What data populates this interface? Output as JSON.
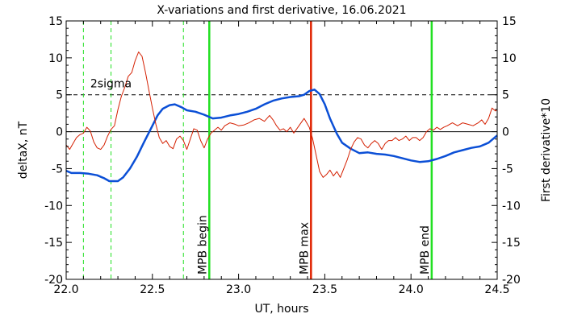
{
  "chart_data": {
    "type": "line",
    "title": "X-variations and first derivative, 16.06.2021",
    "xlabel": "UT, hours",
    "ylabel_left": "deltaX, nT",
    "ylabel_right": "First derivative*10",
    "xlim": [
      22.0,
      24.5
    ],
    "ylim": [
      -20,
      15
    ],
    "x_ticks": [
      22.0,
      22.5,
      23.0,
      23.5,
      24.0,
      24.5
    ],
    "x_tick_labels": [
      "22.0",
      "22.5",
      "23.0",
      "23.5",
      "24.0",
      "24.5"
    ],
    "y_ticks": [
      15,
      10,
      5,
      0,
      -5,
      -10,
      -15,
      -20
    ],
    "y_tick_labels": [
      "15",
      "10",
      "5",
      "0",
      "-5",
      "-10",
      "-15",
      "-20"
    ],
    "colors": {
      "deltaX": "#0b4fd6",
      "derivative": "#d41f00",
      "mpb_begin_end": "#22e022",
      "mpb_max": "#e02200",
      "axis": "#000000"
    },
    "series": [
      {
        "key": "deltaX",
        "axis": "left",
        "points": [
          [
            22.0,
            -5.3
          ],
          [
            22.03,
            -5.6
          ],
          [
            22.08,
            -5.6
          ],
          [
            22.13,
            -5.7
          ],
          [
            22.18,
            -5.9
          ],
          [
            22.22,
            -6.3
          ],
          [
            22.25,
            -6.7
          ],
          [
            22.3,
            -6.7
          ],
          [
            22.33,
            -6.2
          ],
          [
            22.37,
            -5.0
          ],
          [
            22.41,
            -3.4
          ],
          [
            22.45,
            -1.5
          ],
          [
            22.5,
            0.8
          ],
          [
            22.53,
            2.2
          ],
          [
            22.56,
            3.1
          ],
          [
            22.6,
            3.6
          ],
          [
            22.63,
            3.7
          ],
          [
            22.67,
            3.3
          ],
          [
            22.7,
            2.9
          ],
          [
            22.75,
            2.7
          ],
          [
            22.8,
            2.3
          ],
          [
            22.85,
            1.8
          ],
          [
            22.9,
            1.9
          ],
          [
            22.95,
            2.2
          ],
          [
            23.0,
            2.4
          ],
          [
            23.05,
            2.7
          ],
          [
            23.1,
            3.1
          ],
          [
            23.15,
            3.7
          ],
          [
            23.2,
            4.2
          ],
          [
            23.25,
            4.5
          ],
          [
            23.3,
            4.7
          ],
          [
            23.35,
            4.8
          ],
          [
            23.38,
            5.0
          ],
          [
            23.41,
            5.5
          ],
          [
            23.44,
            5.7
          ],
          [
            23.47,
            5.1
          ],
          [
            23.5,
            3.7
          ],
          [
            23.53,
            1.8
          ],
          [
            23.57,
            -0.3
          ],
          [
            23.6,
            -1.5
          ],
          [
            23.65,
            -2.3
          ],
          [
            23.7,
            -2.9
          ],
          [
            23.75,
            -2.8
          ],
          [
            23.8,
            -3.0
          ],
          [
            23.85,
            -3.1
          ],
          [
            23.9,
            -3.3
          ],
          [
            23.95,
            -3.6
          ],
          [
            24.0,
            -3.9
          ],
          [
            24.05,
            -4.1
          ],
          [
            24.1,
            -4.0
          ],
          [
            24.15,
            -3.7
          ],
          [
            24.2,
            -3.3
          ],
          [
            24.25,
            -2.8
          ],
          [
            24.3,
            -2.5
          ],
          [
            24.35,
            -2.2
          ],
          [
            24.4,
            -2.0
          ],
          [
            24.45,
            -1.5
          ],
          [
            24.5,
            -0.5
          ]
        ]
      },
      {
        "key": "derivative",
        "axis": "right",
        "points": [
          [
            22.0,
            -1.8
          ],
          [
            22.02,
            -2.4
          ],
          [
            22.04,
            -1.6
          ],
          [
            22.06,
            -0.8
          ],
          [
            22.08,
            -0.4
          ],
          [
            22.1,
            -0.2
          ],
          [
            22.12,
            0.6
          ],
          [
            22.14,
            0.1
          ],
          [
            22.16,
            -1.4
          ],
          [
            22.18,
            -2.2
          ],
          [
            22.2,
            -2.4
          ],
          [
            22.22,
            -1.8
          ],
          [
            22.24,
            -0.6
          ],
          [
            22.26,
            0.3
          ],
          [
            22.28,
            0.8
          ],
          [
            22.3,
            3.0
          ],
          [
            22.32,
            4.8
          ],
          [
            22.34,
            6.0
          ],
          [
            22.36,
            7.5
          ],
          [
            22.38,
            8.0
          ],
          [
            22.4,
            9.6
          ],
          [
            22.42,
            10.8
          ],
          [
            22.44,
            10.2
          ],
          [
            22.46,
            8.0
          ],
          [
            22.48,
            5.6
          ],
          [
            22.5,
            3.2
          ],
          [
            22.52,
            1.0
          ],
          [
            22.54,
            -0.8
          ],
          [
            22.56,
            -1.6
          ],
          [
            22.58,
            -1.2
          ],
          [
            22.6,
            -2.0
          ],
          [
            22.62,
            -2.3
          ],
          [
            22.64,
            -1.0
          ],
          [
            22.66,
            -0.6
          ],
          [
            22.68,
            -1.2
          ],
          [
            22.7,
            -2.4
          ],
          [
            22.72,
            -1.0
          ],
          [
            22.74,
            0.4
          ],
          [
            22.76,
            0.2
          ],
          [
            22.78,
            -1.2
          ],
          [
            22.8,
            -2.2
          ],
          [
            22.82,
            -1.0
          ],
          [
            22.84,
            -0.2
          ],
          [
            22.86,
            0.2
          ],
          [
            22.88,
            0.6
          ],
          [
            22.9,
            0.2
          ],
          [
            22.92,
            0.8
          ],
          [
            22.95,
            1.2
          ],
          [
            22.98,
            1.0
          ],
          [
            23.0,
            0.8
          ],
          [
            23.03,
            0.9
          ],
          [
            23.06,
            1.2
          ],
          [
            23.09,
            1.6
          ],
          [
            23.12,
            1.8
          ],
          [
            23.15,
            1.4
          ],
          [
            23.18,
            2.2
          ],
          [
            23.2,
            1.6
          ],
          [
            23.22,
            0.8
          ],
          [
            23.24,
            0.2
          ],
          [
            23.26,
            0.4
          ],
          [
            23.28,
            0.0
          ],
          [
            23.3,
            0.6
          ],
          [
            23.32,
            -0.2
          ],
          [
            23.35,
            0.8
          ],
          [
            23.38,
            1.8
          ],
          [
            23.41,
            0.6
          ],
          [
            23.43,
            -1.0
          ],
          [
            23.45,
            -3.2
          ],
          [
            23.47,
            -5.4
          ],
          [
            23.49,
            -6.2
          ],
          [
            23.51,
            -5.8
          ],
          [
            23.53,
            -5.2
          ],
          [
            23.55,
            -6.0
          ],
          [
            23.57,
            -5.4
          ],
          [
            23.59,
            -6.2
          ],
          [
            23.61,
            -5.0
          ],
          [
            23.63,
            -3.8
          ],
          [
            23.65,
            -2.4
          ],
          [
            23.67,
            -1.4
          ],
          [
            23.69,
            -0.8
          ],
          [
            23.71,
            -1.0
          ],
          [
            23.73,
            -1.8
          ],
          [
            23.75,
            -2.2
          ],
          [
            23.77,
            -1.6
          ],
          [
            23.79,
            -1.2
          ],
          [
            23.81,
            -1.6
          ],
          [
            23.83,
            -2.4
          ],
          [
            23.85,
            -1.6
          ],
          [
            23.87,
            -1.2
          ],
          [
            23.89,
            -1.2
          ],
          [
            23.91,
            -0.8
          ],
          [
            23.93,
            -1.2
          ],
          [
            23.95,
            -1.0
          ],
          [
            23.97,
            -0.6
          ],
          [
            23.99,
            -1.2
          ],
          [
            24.01,
            -0.8
          ],
          [
            24.03,
            -0.8
          ],
          [
            24.05,
            -1.2
          ],
          [
            24.07,
            -0.8
          ],
          [
            24.09,
            0.0
          ],
          [
            24.11,
            0.4
          ],
          [
            24.13,
            0.2
          ],
          [
            24.15,
            0.6
          ],
          [
            24.17,
            0.3
          ],
          [
            24.19,
            0.6
          ],
          [
            24.21,
            0.8
          ],
          [
            24.24,
            1.2
          ],
          [
            24.27,
            0.8
          ],
          [
            24.3,
            1.2
          ],
          [
            24.33,
            1.0
          ],
          [
            24.36,
            0.8
          ],
          [
            24.39,
            1.2
          ],
          [
            24.41,
            1.6
          ],
          [
            24.43,
            1.0
          ],
          [
            24.45,
            1.8
          ],
          [
            24.47,
            3.2
          ],
          [
            24.49,
            2.8
          ],
          [
            24.5,
            3.0
          ]
        ]
      }
    ],
    "hlines": [
      {
        "y": 0,
        "style": "solid",
        "color": "#000000"
      },
      {
        "y": 5,
        "style": "dashed",
        "color": "#000000"
      }
    ],
    "vlines": [
      {
        "x": 22.1,
        "style": "dashed",
        "color": "#22e022"
      },
      {
        "x": 22.26,
        "style": "dashed",
        "color": "#22e022"
      },
      {
        "x": 22.68,
        "style": "dashed",
        "color": "#22e022"
      },
      {
        "x": 22.83,
        "style": "solid",
        "color": "#22e022",
        "label": "MPB begin"
      },
      {
        "x": 23.42,
        "style": "solid",
        "color": "#e02200",
        "label": "MPB max"
      },
      {
        "x": 24.12,
        "style": "solid",
        "color": "#22e022",
        "label": "MPB end"
      }
    ],
    "annotations": [
      {
        "text": "2sigma",
        "x": 22.14,
        "y": 6.0
      }
    ],
    "grid": false
  }
}
